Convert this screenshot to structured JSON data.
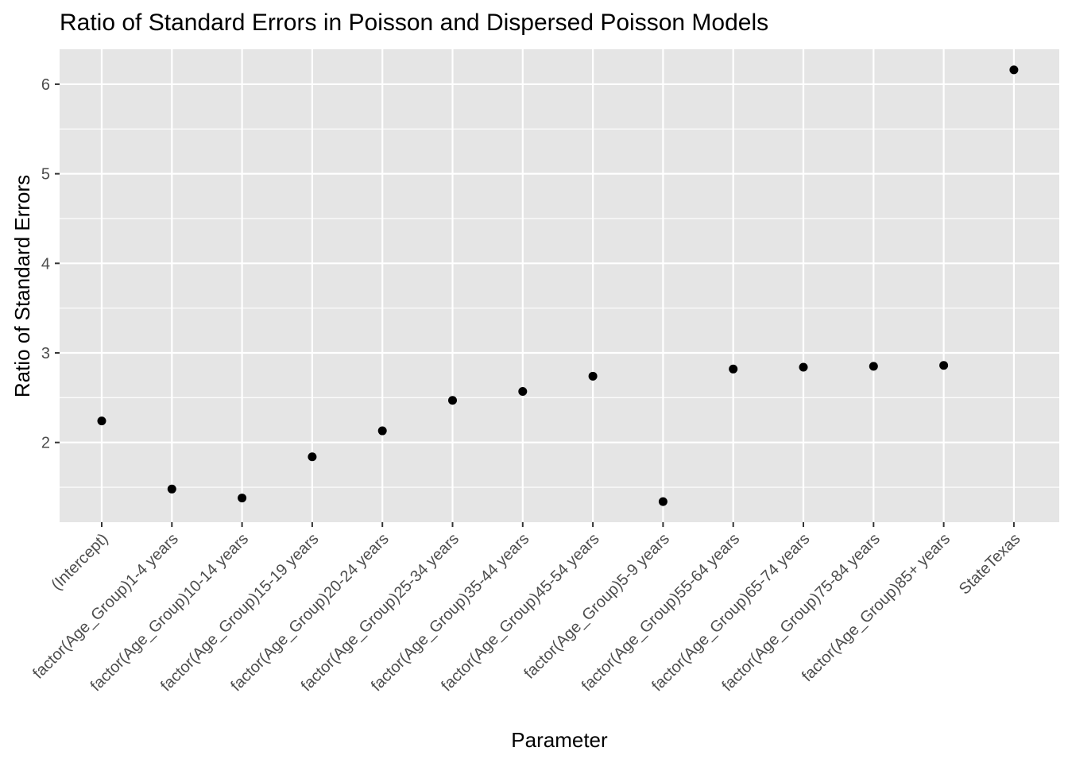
{
  "chart_data": {
    "type": "scatter",
    "title": "Ratio of Standard Errors in Poisson and Dispersed Poisson Models",
    "xlabel": "Parameter",
    "ylabel": "Ratio of Standard Errors",
    "categories": [
      "(Intercept)",
      "factor(Age_Group)1-4 years",
      "factor(Age_Group)10-14 years",
      "factor(Age_Group)15-19 years",
      "factor(Age_Group)20-24 years",
      "factor(Age_Group)25-34 years",
      "factor(Age_Group)35-44 years",
      "factor(Age_Group)45-54 years",
      "factor(Age_Group)5-9 years",
      "factor(Age_Group)55-64 years",
      "factor(Age_Group)65-74 years",
      "factor(Age_Group)75-84 years",
      "factor(Age_Group)85+ years",
      "StateTexas"
    ],
    "values": [
      2.24,
      1.48,
      1.38,
      1.84,
      2.13,
      2.47,
      2.57,
      2.74,
      1.34,
      2.82,
      2.84,
      2.85,
      2.86,
      6.16
    ],
    "yticks": [
      2,
      3,
      4,
      5,
      6
    ],
    "ylim": [
      1.11,
      6.39
    ],
    "grid": true,
    "legend": "none",
    "colors": {
      "panel": "#e5e5e5",
      "grid": "#ffffff",
      "point": "#000000",
      "tick_text": "#4d4d4d"
    }
  }
}
